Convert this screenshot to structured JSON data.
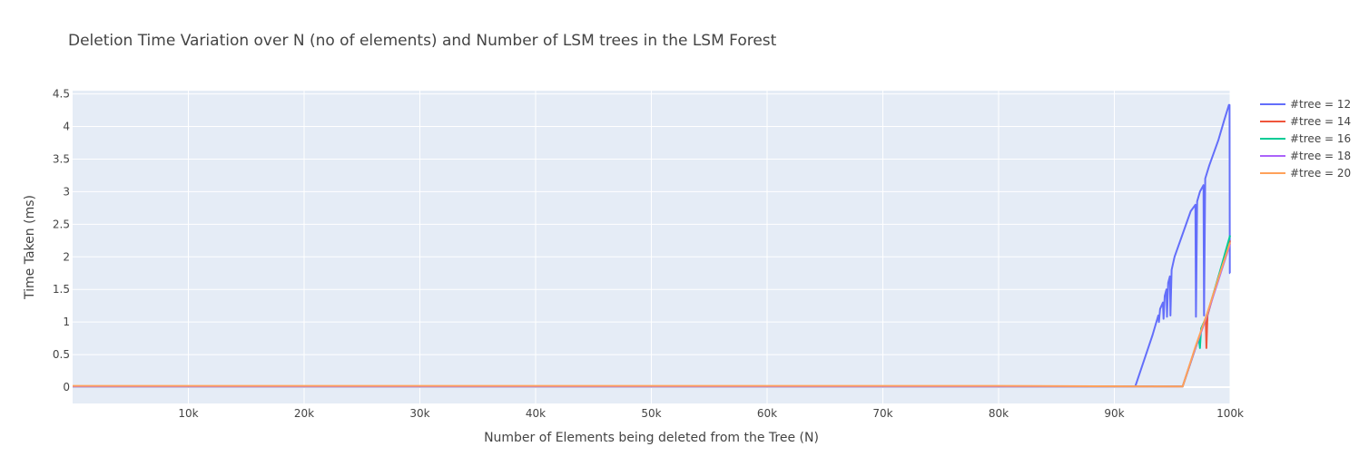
{
  "chart_data": {
    "type": "line",
    "title": "Deletion Time Variation over N (no of elements) and Number of LSM trees in the LSM Forest",
    "xlabel": "Number of Elements being deleted from the Tree (N)",
    "ylabel": "Time Taken (ms)",
    "xlim": [
      0,
      100000
    ],
    "ylim": [
      -0.25,
      4.55
    ],
    "x_ticks": [
      10000,
      20000,
      30000,
      40000,
      50000,
      60000,
      70000,
      80000,
      90000,
      100000
    ],
    "x_tick_labels": [
      "10k",
      "20k",
      "30k",
      "40k",
      "50k",
      "60k",
      "70k",
      "80k",
      "90k",
      "100k"
    ],
    "y_ticks": [
      0,
      0.5,
      1,
      1.5,
      2,
      2.5,
      3,
      3.5,
      4,
      4.5
    ],
    "y_tick_labels": [
      "0",
      "0.5",
      "1",
      "1.5",
      "2",
      "2.5",
      "3",
      "3.5",
      "4",
      "4.5"
    ],
    "grid": true,
    "legend_position": "top-right",
    "series": [
      {
        "name": "#tree = 12",
        "color": "#636efa",
        "points": [
          [
            0,
            0.01
          ],
          [
            10000,
            0.01
          ],
          [
            20000,
            0.01
          ],
          [
            30000,
            0.01
          ],
          [
            40000,
            0.01
          ],
          [
            50000,
            0.01
          ],
          [
            60000,
            0.01
          ],
          [
            70000,
            0.01
          ],
          [
            80000,
            0.01
          ],
          [
            91800,
            0.01
          ],
          [
            93300,
            0.8
          ],
          [
            93800,
            1.1
          ],
          [
            93850,
            1.0
          ],
          [
            93950,
            1.2
          ],
          [
            94200,
            1.3
          ],
          [
            94250,
            1.05
          ],
          [
            94350,
            1.4
          ],
          [
            94500,
            1.5
          ],
          [
            94550,
            1.08
          ],
          [
            94650,
            1.6
          ],
          [
            94800,
            1.7
          ],
          [
            94850,
            1.1
          ],
          [
            94950,
            1.8
          ],
          [
            95200,
            2.0
          ],
          [
            96000,
            2.4
          ],
          [
            96600,
            2.7
          ],
          [
            97000,
            2.8
          ],
          [
            97050,
            1.08
          ],
          [
            97150,
            2.85
          ],
          [
            97400,
            3.0
          ],
          [
            97700,
            3.1
          ],
          [
            97750,
            1.1
          ],
          [
            97850,
            3.2
          ],
          [
            98200,
            3.4
          ],
          [
            99000,
            3.8
          ],
          [
            99500,
            4.1
          ],
          [
            99900,
            4.33
          ],
          [
            99950,
            4.33
          ],
          [
            99980,
            1.75
          ],
          [
            100000,
            1.75
          ]
        ]
      },
      {
        "name": "#tree = 14",
        "color": "#ef553b",
        "points": [
          [
            0,
            0.01
          ],
          [
            20000,
            0.01
          ],
          [
            40000,
            0.01
          ],
          [
            60000,
            0.01
          ],
          [
            80000,
            0.01
          ],
          [
            95900,
            0.01
          ],
          [
            97000,
            0.6
          ],
          [
            97500,
            0.85
          ],
          [
            97900,
            1.05
          ],
          [
            97950,
            0.6
          ],
          [
            98050,
            1.1
          ],
          [
            99000,
            1.7
          ],
          [
            100000,
            2.25
          ]
        ]
      },
      {
        "name": "#tree = 16",
        "color": "#00cc96",
        "points": [
          [
            0,
            0.01
          ],
          [
            20000,
            0.01
          ],
          [
            40000,
            0.01
          ],
          [
            60000,
            0.01
          ],
          [
            80000,
            0.01
          ],
          [
            95900,
            0.01
          ],
          [
            97000,
            0.6
          ],
          [
            97300,
            0.75
          ],
          [
            97400,
            0.6
          ],
          [
            97500,
            0.9
          ],
          [
            98000,
            1.1
          ],
          [
            99000,
            1.7
          ],
          [
            100000,
            2.33
          ]
        ]
      },
      {
        "name": "#tree = 18",
        "color": "#ab63fa",
        "points": [
          [
            0,
            0.01
          ],
          [
            20000,
            0.01
          ],
          [
            40000,
            0.01
          ],
          [
            60000,
            0.01
          ],
          [
            80000,
            0.01
          ],
          [
            95900,
            0.01
          ],
          [
            97000,
            0.6
          ],
          [
            98000,
            1.1
          ],
          [
            99000,
            1.65
          ],
          [
            100000,
            2.2
          ]
        ]
      },
      {
        "name": "#tree = 20",
        "color": "#ffa15a",
        "points": [
          [
            0,
            0.02
          ],
          [
            10000,
            0.02
          ],
          [
            20000,
            0.02
          ],
          [
            30000,
            0.02
          ],
          [
            40000,
            0.02
          ],
          [
            50000,
            0.02
          ],
          [
            60000,
            0.02
          ],
          [
            70000,
            0.02
          ],
          [
            80000,
            0.02
          ],
          [
            95900,
            0.01
          ],
          [
            97000,
            0.62
          ],
          [
            98000,
            1.12
          ],
          [
            99000,
            1.68
          ],
          [
            100000,
            2.22
          ]
        ]
      }
    ]
  }
}
